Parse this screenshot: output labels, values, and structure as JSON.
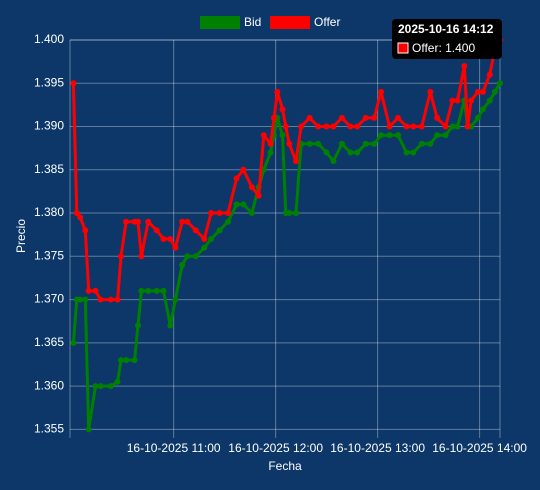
{
  "chart_data": {
    "type": "line",
    "x_label": "Fecha",
    "y_label": "Precio",
    "x": [
      "2025-10-16 10:01",
      "2025-10-16 10:03",
      "2025-10-16 10:05",
      "2025-10-16 10:08",
      "2025-10-16 10:10",
      "2025-10-16 10:14",
      "2025-10-16 10:17",
      "2025-10-16 10:23",
      "2025-10-16 10:27",
      "2025-10-16 10:29",
      "2025-10-16 10:32",
      "2025-10-16 10:37",
      "2025-10-16 10:39",
      "2025-10-16 10:41",
      "2025-10-16 10:45",
      "2025-10-16 10:50",
      "2025-10-16 10:54",
      "2025-10-16 10:58",
      "2025-10-16 11:01",
      "2025-10-16 11:05",
      "2025-10-16 11:08",
      "2025-10-16 11:13",
      "2025-10-16 11:18",
      "2025-10-16 11:22",
      "2025-10-16 11:27",
      "2025-10-16 11:32",
      "2025-10-16 11:37",
      "2025-10-16 11:41",
      "2025-10-16 11:46",
      "2025-10-16 11:50",
      "2025-10-16 11:53",
      "2025-10-16 11:57",
      "2025-10-16 11:59",
      "2025-10-16 12:01",
      "2025-10-16 12:04",
      "2025-10-16 12:06",
      "2025-10-16 12:08",
      "2025-10-16 12:12",
      "2025-10-16 12:15",
      "2025-10-16 12:20",
      "2025-10-16 12:25",
      "2025-10-16 12:30",
      "2025-10-16 12:34",
      "2025-10-16 12:39",
      "2025-10-16 12:44",
      "2025-10-16 12:48",
      "2025-10-16 12:53",
      "2025-10-16 12:58",
      "2025-10-16 13:02",
      "2025-10-16 13:07",
      "2025-10-16 13:12",
      "2025-10-16 13:17",
      "2025-10-16 13:21",
      "2025-10-16 13:26",
      "2025-10-16 13:31",
      "2025-10-16 13:35",
      "2025-10-16 13:40",
      "2025-10-16 13:44",
      "2025-10-16 13:47",
      "2025-10-16 13:51",
      "2025-10-16 13:53",
      "2025-10-16 13:55",
      "2025-10-16 13:59",
      "2025-10-16 14:02",
      "2025-10-16 14:06",
      "2025-10-16 14:09",
      "2025-10-16 14:12"
    ],
    "series": [
      {
        "name": "Bid",
        "color": "#008000",
        "values": [
          1.365,
          1.37,
          1.37,
          1.37,
          1.355,
          1.36,
          1.36,
          1.36,
          1.3605,
          1.363,
          1.363,
          1.363,
          1.367,
          1.371,
          1.371,
          1.371,
          1.371,
          1.367,
          1.37,
          1.374,
          1.375,
          1.375,
          1.376,
          1.377,
          1.378,
          1.379,
          1.381,
          1.381,
          1.38,
          1.383,
          1.385,
          1.387,
          1.389,
          1.391,
          1.389,
          1.38,
          1.38,
          1.38,
          1.388,
          1.388,
          1.388,
          1.387,
          1.386,
          1.388,
          1.387,
          1.387,
          1.388,
          1.388,
          1.389,
          1.389,
          1.389,
          1.387,
          1.387,
          1.388,
          1.388,
          1.389,
          1.389,
          1.39,
          1.39,
          1.393,
          1.39,
          1.39,
          1.391,
          1.392,
          1.393,
          1.394,
          1.395
        ]
      },
      {
        "name": "Offer",
        "color": "#ff0000",
        "values": [
          1.395,
          1.38,
          1.3795,
          1.378,
          1.371,
          1.371,
          1.37,
          1.37,
          1.37,
          1.375,
          1.379,
          1.379,
          1.379,
          1.375,
          1.379,
          1.378,
          1.377,
          1.377,
          1.376,
          1.379,
          1.379,
          1.378,
          1.377,
          1.38,
          1.38,
          1.38,
          1.384,
          1.385,
          1.383,
          1.382,
          1.389,
          1.388,
          1.391,
          1.394,
          1.392,
          1.39,
          1.388,
          1.386,
          1.39,
          1.391,
          1.39,
          1.39,
          1.39,
          1.391,
          1.39,
          1.39,
          1.391,
          1.391,
          1.394,
          1.39,
          1.391,
          1.39,
          1.39,
          1.39,
          1.394,
          1.391,
          1.39,
          1.393,
          1.393,
          1.397,
          1.39,
          1.393,
          1.394,
          1.394,
          1.396,
          1.399,
          1.4
        ]
      }
    ],
    "xlim": [
      "2025-10-16 09:59",
      "2025-10-16 14:12"
    ],
    "xticks": [
      {
        "value": "2025-10-16 11:00",
        "label": "16-10-2025 11:00"
      },
      {
        "value": "2025-10-16 12:00",
        "label": "16-10-2025 12:00"
      },
      {
        "value": "2025-10-16 13:00",
        "label": "16-10-2025 13:00"
      },
      {
        "value": "2025-10-16 14:00",
        "label": "16-10-2025 14:00"
      }
    ],
    "ylim": [
      1.354,
      1.4
    ],
    "yticks": [
      1.355,
      {
        "value": 1.36,
        "label": "1.360"
      },
      1.365,
      {
        "value": 1.37,
        "label": "1.370"
      },
      1.375,
      {
        "value": 1.38,
        "label": "1.380"
      },
      1.385,
      {
        "value": 1.39,
        "label": "1.390"
      },
      1.395,
      {
        "value": 1.4,
        "label": "1.400"
      }
    ],
    "grid": true,
    "tooltip": {
      "title": "2025-10-16 14:12",
      "label": "Offer: 1.400"
    }
  }
}
